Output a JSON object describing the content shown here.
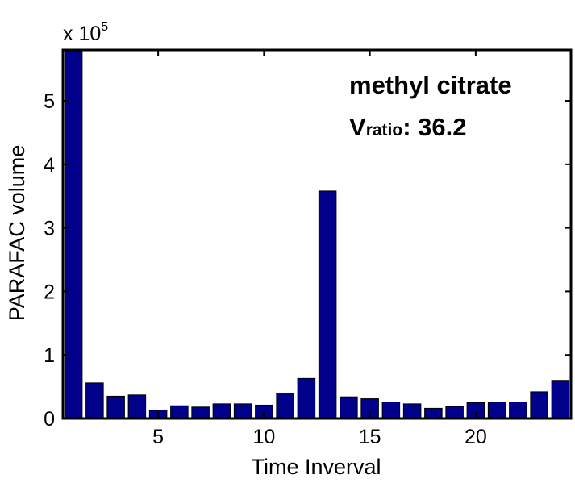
{
  "chart_data": {
    "type": "bar",
    "xlabel": "Time Inverval",
    "ylabel": "PARAFAC volume",
    "y_exponent_label": "x 10",
    "y_exponent_power": "5",
    "y_scale_factor": 100000,
    "x_ticks": [
      5,
      10,
      15,
      20
    ],
    "x_tick_labels": [
      "5",
      "10",
      "15",
      "20"
    ],
    "y_ticks": [
      0,
      100000,
      200000,
      300000,
      400000,
      500000
    ],
    "y_tick_labels": [
      "0",
      "1",
      "2",
      "3",
      "4",
      "5"
    ],
    "xlim": [
      0.5,
      24.5
    ],
    "ylim": [
      0,
      580000
    ],
    "grid": false,
    "bar_color": "#00008b",
    "x": [
      1,
      2,
      3,
      4,
      5,
      6,
      7,
      8,
      9,
      10,
      11,
      12,
      13,
      14,
      15,
      16,
      17,
      18,
      19,
      20,
      21,
      22,
      23,
      24
    ],
    "values": [
      580000,
      56000,
      35000,
      37000,
      13000,
      20000,
      18000,
      23000,
      23000,
      21000,
      40000,
      63000,
      358000,
      34000,
      31000,
      26000,
      23000,
      16000,
      19000,
      25000,
      26000,
      26000,
      42000,
      60000
    ],
    "annotations": {
      "compound": "methyl citrate",
      "ratio_label_main": "V",
      "ratio_label_sub": "ratio",
      "ratio_value": ": 36.2"
    }
  }
}
